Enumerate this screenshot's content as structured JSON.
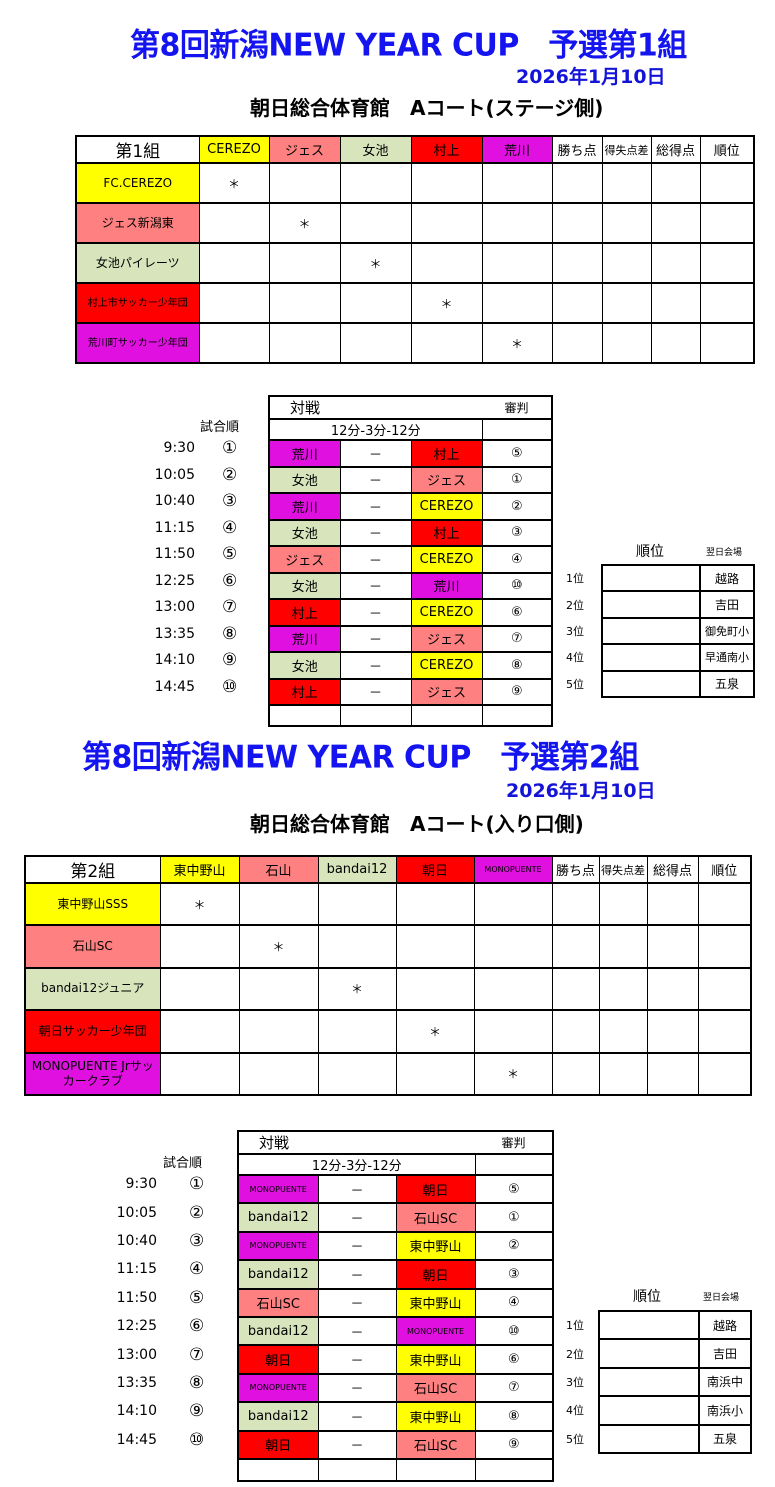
{
  "colors": {
    "title": "#1414f0",
    "yellow": "#ffff00",
    "pink": "#ff8080",
    "green": "#d8e4bc",
    "red": "#ff0000",
    "magenta": "#e010e0"
  },
  "groups": [
    {
      "title": "第8回新潟NEW YEAR CUP　予選第1組",
      "date": "2026年1月10日",
      "venue": "朝日総合体育館　Aコート(ステージ側)",
      "standings": {
        "corner": "第1組",
        "columns": [
          {
            "label": "CEREZO",
            "color": "#ffff00"
          },
          {
            "label": "ジェス",
            "color": "#ff8080"
          },
          {
            "label": "女池",
            "color": "#d8e4bc"
          },
          {
            "label": "村上",
            "color": "#ff0000"
          },
          {
            "label": "荒川",
            "color": "#e010e0"
          }
        ],
        "stat_headers": [
          "勝ち点",
          "得失点差",
          "総得点",
          "順位"
        ],
        "rows": [
          {
            "name": "FC.CEREZO",
            "color": "#ffff00",
            "cells": [
              "＊",
              "",
              "",
              "",
              "",
              "",
              "",
              "",
              ""
            ]
          },
          {
            "name": "ジェス新潟東",
            "color": "#ff8080",
            "cells": [
              "",
              "＊",
              "",
              "",
              "",
              "",
              "",
              "",
              ""
            ]
          },
          {
            "name": "女池パイレーツ",
            "color": "#d8e4bc",
            "cells": [
              "",
              "",
              "＊",
              "",
              "",
              "",
              "",
              "",
              ""
            ]
          },
          {
            "name": "村上市サッカー少年団",
            "color": "#ff0000",
            "cells": [
              "",
              "",
              "",
              "＊",
              "",
              "",
              "",
              "",
              ""
            ]
          },
          {
            "name": "荒川町サッカー少年団",
            "color": "#e010e0",
            "cells": [
              "",
              "",
              "",
              "",
              "＊",
              "",
              "",
              "",
              ""
            ]
          }
        ]
      },
      "schedule": {
        "order_label": "試合順",
        "match_header": "対戦",
        "referee_header": "審判",
        "format": "12分-3分-12分",
        "separator": "－",
        "matches": [
          {
            "time": "9:30",
            "num": "①",
            "home": "荒川",
            "home_color": "#e010e0",
            "away": "村上",
            "away_color": "#ff0000",
            "ref": "⑤"
          },
          {
            "time": "10:05",
            "num": "②",
            "home": "女池",
            "home_color": "#d8e4bc",
            "away": "ジェス",
            "away_color": "#ff8080",
            "ref": "①"
          },
          {
            "time": "10:40",
            "num": "③",
            "home": "荒川",
            "home_color": "#e010e0",
            "away": "CEREZO",
            "away_color": "#ffff00",
            "ref": "②"
          },
          {
            "time": "11:15",
            "num": "④",
            "home": "女池",
            "home_color": "#d8e4bc",
            "away": "村上",
            "away_color": "#ff0000",
            "ref": "③"
          },
          {
            "time": "11:50",
            "num": "⑤",
            "home": "ジェス",
            "home_color": "#ff8080",
            "away": "CEREZO",
            "away_color": "#ffff00",
            "ref": "④"
          },
          {
            "time": "12:25",
            "num": "⑥",
            "home": "女池",
            "home_color": "#d8e4bc",
            "away": "荒川",
            "away_color": "#e010e0",
            "ref": "⑩"
          },
          {
            "time": "13:00",
            "num": "⑦",
            "home": "村上",
            "home_color": "#ff0000",
            "away": "CEREZO",
            "away_color": "#ffff00",
            "ref": "⑥"
          },
          {
            "time": "13:35",
            "num": "⑧",
            "home": "荒川",
            "home_color": "#e010e0",
            "away": "ジェス",
            "away_color": "#ff8080",
            "ref": "⑦"
          },
          {
            "time": "14:10",
            "num": "⑨",
            "home": "女池",
            "home_color": "#d8e4bc",
            "away": "CEREZO",
            "away_color": "#ffff00",
            "ref": "⑧"
          },
          {
            "time": "14:45",
            "num": "⑩",
            "home": "村上",
            "home_color": "#ff0000",
            "away": "ジェス",
            "away_color": "#ff8080",
            "ref": "⑨"
          }
        ]
      },
      "ranking": {
        "header": "順位",
        "venue_header": "翌日会場",
        "rows": [
          {
            "rank": "1位",
            "team": "",
            "venue": "越路"
          },
          {
            "rank": "2位",
            "team": "",
            "venue": "吉田"
          },
          {
            "rank": "3位",
            "team": "",
            "venue": "御免町小"
          },
          {
            "rank": "4位",
            "team": "",
            "venue": "早通南小"
          },
          {
            "rank": "5位",
            "team": "",
            "venue": "五泉"
          }
        ]
      }
    },
    {
      "title": "第8回新潟NEW YEAR CUP　予選第2組",
      "date": "2026年1月10日",
      "venue": "朝日総合体育館　Aコート(入り口側)",
      "standings": {
        "corner": "第2組",
        "columns": [
          {
            "label": "東中野山",
            "color": "#ffff00"
          },
          {
            "label": "石山",
            "color": "#ff8080"
          },
          {
            "label": "bandai12",
            "color": "#d8e4bc"
          },
          {
            "label": "朝日",
            "color": "#ff0000"
          },
          {
            "label": "MONOPUENTE",
            "color": "#e010e0"
          }
        ],
        "stat_headers": [
          "勝ち点",
          "得失点差",
          "総得点",
          "順位"
        ],
        "rows": [
          {
            "name": "東中野山SSS",
            "color": "#ffff00",
            "cells": [
              "＊",
              "",
              "",
              "",
              "",
              "",
              "",
              "",
              ""
            ]
          },
          {
            "name": "石山SC",
            "color": "#ff8080",
            "cells": [
              "",
              "＊",
              "",
              "",
              "",
              "",
              "",
              "",
              ""
            ]
          },
          {
            "name": "bandai12ジュニア",
            "color": "#d8e4bc",
            "cells": [
              "",
              "",
              "＊",
              "",
              "",
              "",
              "",
              "",
              ""
            ]
          },
          {
            "name": "朝日サッカー少年団",
            "color": "#ff0000",
            "cells": [
              "",
              "",
              "",
              "＊",
              "",
              "",
              "",
              "",
              ""
            ]
          },
          {
            "name": "MONOPUENTE Jrサッカークラブ",
            "color": "#e010e0",
            "cells": [
              "",
              "",
              "",
              "",
              "＊",
              "",
              "",
              "",
              ""
            ]
          }
        ]
      },
      "schedule": {
        "order_label": "試合順",
        "match_header": "対戦",
        "referee_header": "審判",
        "format": "12分-3分-12分",
        "separator": "－",
        "matches": [
          {
            "time": "9:30",
            "num": "①",
            "home": "MONOPUENTE",
            "home_color": "#e010e0",
            "away": "朝日",
            "away_color": "#ff0000",
            "ref": "⑤"
          },
          {
            "time": "10:05",
            "num": "②",
            "home": "bandai12",
            "home_color": "#d8e4bc",
            "away": "石山SC",
            "away_color": "#ff8080",
            "ref": "①"
          },
          {
            "time": "10:40",
            "num": "③",
            "home": "MONOPUENTE",
            "home_color": "#e010e0",
            "away": "東中野山",
            "away_color": "#ffff00",
            "ref": "②"
          },
          {
            "time": "11:15",
            "num": "④",
            "home": "bandai12",
            "home_color": "#d8e4bc",
            "away": "朝日",
            "away_color": "#ff0000",
            "ref": "③"
          },
          {
            "time": "11:50",
            "num": "⑤",
            "home": "石山SC",
            "home_color": "#ff8080",
            "away": "東中野山",
            "away_color": "#ffff00",
            "ref": "④"
          },
          {
            "time": "12:25",
            "num": "⑥",
            "home": "bandai12",
            "home_color": "#d8e4bc",
            "away": "MONOPUENTE",
            "away_color": "#e010e0",
            "ref": "⑩"
          },
          {
            "time": "13:00",
            "num": "⑦",
            "home": "朝日",
            "home_color": "#ff0000",
            "away": "東中野山",
            "away_color": "#ffff00",
            "ref": "⑥"
          },
          {
            "time": "13:35",
            "num": "⑧",
            "home": "MONOPUENTE",
            "home_color": "#e010e0",
            "away": "石山SC",
            "away_color": "#ff8080",
            "ref": "⑦"
          },
          {
            "time": "14:10",
            "num": "⑨",
            "home": "bandai12",
            "home_color": "#d8e4bc",
            "away": "東中野山",
            "away_color": "#ffff00",
            "ref": "⑧"
          },
          {
            "time": "14:45",
            "num": "⑩",
            "home": "朝日",
            "home_color": "#ff0000",
            "away": "石山SC",
            "away_color": "#ff8080",
            "ref": "⑨"
          }
        ]
      },
      "ranking": {
        "header": "順位",
        "venue_header": "翌日会場",
        "rows": [
          {
            "rank": "1位",
            "team": "",
            "venue": "越路"
          },
          {
            "rank": "2位",
            "team": "",
            "venue": "吉田"
          },
          {
            "rank": "3位",
            "team": "",
            "venue": "南浜中"
          },
          {
            "rank": "4位",
            "team": "",
            "venue": "南浜小"
          },
          {
            "rank": "5位",
            "team": "",
            "venue": "五泉"
          }
        ]
      }
    }
  ]
}
